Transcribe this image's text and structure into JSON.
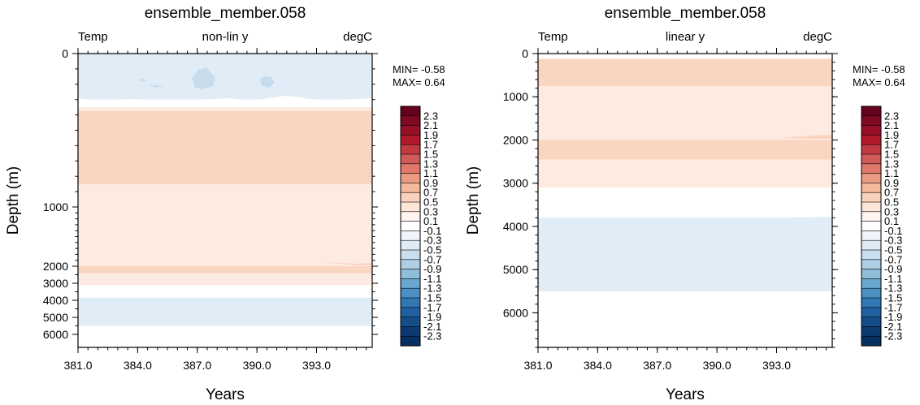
{
  "chart_data": [
    {
      "type": "contour",
      "title": "ensemble_member.058",
      "left_string": "Temp",
      "center_string": "non-lin y",
      "right_string": "degC",
      "xlabel": "Years",
      "ylabel": "Depth (m)",
      "xlim": [
        381.0,
        395.8
      ],
      "x_ticks": [
        "381.0",
        "384.0",
        "387.0",
        "390.0",
        "393.0"
      ],
      "x_tick_values": [
        381,
        384,
        387,
        390,
        393
      ],
      "y_scale": "non-linear",
      "y_ticks": [
        "0",
        "1000",
        "2000",
        "3000",
        "4000",
        "5000",
        "6000"
      ],
      "y_tick_values": [
        0,
        1000,
        2000,
        3000,
        4000,
        5000,
        6000
      ],
      "min_label": "MIN= -0.58",
      "max_label": "MAX=  0.64",
      "bands": [
        {
          "from": 0,
          "to": 300,
          "level": "-0.1 to -0.3",
          "color": "#e1edf6"
        },
        {
          "from": 300,
          "to": 350,
          "level": "-0.1 to 0.1",
          "color": "#ffffff"
        },
        {
          "from": 350,
          "to": 375,
          "level": "0.1 to 0.3",
          "color": "#fdeae0"
        },
        {
          "from": 375,
          "to": 850,
          "level": "0.3 to 0.5",
          "color": "#fad5c0"
        },
        {
          "from": 850,
          "to": 2000,
          "level": "0.1 to 0.3",
          "color": "#fdeae0"
        },
        {
          "from": 2000,
          "to": 2400,
          "level": "0.3 to 0.5",
          "color": "#fad5c0"
        },
        {
          "from": 2400,
          "to": 3100,
          "level": "0.1 to 0.3",
          "color": "#fdeae0"
        },
        {
          "from": 3100,
          "to": 3850,
          "level": "-0.1 to 0.1",
          "color": "#ffffff"
        },
        {
          "from": 3850,
          "to": 5500,
          "level": "-0.1 to -0.3",
          "color": "#e1edf6"
        },
        {
          "from": 5500,
          "to": 6800,
          "level": "-0.1 to 0.1",
          "color": "#ffffff"
        }
      ]
    },
    {
      "type": "contour",
      "title": "ensemble_member.058",
      "left_string": "Temp",
      "center_string": "linear y",
      "right_string": "degC",
      "xlabel": "Years",
      "ylabel": "Depth (m)",
      "xlim": [
        381.0,
        395.8
      ],
      "x_ticks": [
        "381.0",
        "384.0",
        "387.0",
        "390.0",
        "393.0"
      ],
      "x_tick_values": [
        381,
        384,
        387,
        390,
        393
      ],
      "y_scale": "linear",
      "ylim": [
        0,
        6800
      ],
      "y_ticks": [
        "0",
        "1000",
        "2000",
        "3000",
        "4000",
        "5000",
        "6000"
      ],
      "y_tick_values": [
        0,
        1000,
        2000,
        3000,
        4000,
        5000,
        6000
      ],
      "min_label": "MIN= -0.58",
      "max_label": "MAX=  0.64",
      "bands": [
        {
          "from": 0,
          "to": 120,
          "level": "-0.1 to 0.1",
          "color": "#ffffff"
        },
        {
          "from": 120,
          "to": 750,
          "level": "0.3 to 0.5",
          "color": "#fad5c0"
        },
        {
          "from": 750,
          "to": 2000,
          "level": "0.1 to 0.3",
          "color": "#fdeae0"
        },
        {
          "from": 2000,
          "to": 2450,
          "level": "0.3 to 0.5",
          "color": "#fad5c0"
        },
        {
          "from": 2450,
          "to": 3100,
          "level": "0.1 to 0.3",
          "color": "#fdeae0"
        },
        {
          "from": 3100,
          "to": 3800,
          "level": "-0.1 to 0.1",
          "color": "#ffffff"
        },
        {
          "from": 3800,
          "to": 5500,
          "level": "-0.1 to -0.3",
          "color": "#e1edf6"
        },
        {
          "from": 5500,
          "to": 6800,
          "level": "-0.1 to 0.1",
          "color": "#ffffff"
        }
      ]
    }
  ],
  "colorbar": {
    "labels": [
      "2.3",
      "2.1",
      "1.9",
      "1.7",
      "1.5",
      "1.3",
      "1.1",
      "0.9",
      "0.7",
      "0.5",
      "0.3",
      "0.1",
      "-0.1",
      "-0.3",
      "-0.5",
      "-0.7",
      "-0.9",
      "-1.1",
      "-1.3",
      "-1.5",
      "-1.7",
      "-1.9",
      "-2.1",
      "-2.3"
    ],
    "colors": [
      "#67001f",
      "#7f0823",
      "#981028",
      "#b2182b",
      "#c13a41",
      "#d15b58",
      "#e0796c",
      "#eb9a82",
      "#f4b89a",
      "#fad2bc",
      "#fde5d8",
      "#fff4ee",
      "#ffffff",
      "#eef4f9",
      "#dfebf5",
      "#c8ddee",
      "#adcfe5",
      "#8ebed9",
      "#6aa8cf",
      "#4a90c2",
      "#3178b3",
      "#1f60a0",
      "#154d89",
      "#0d3a70",
      "#053061"
    ]
  }
}
